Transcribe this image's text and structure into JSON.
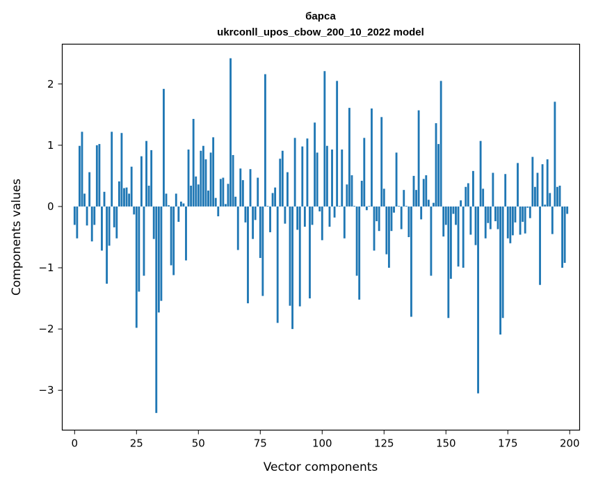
{
  "chart_data": {
    "type": "bar",
    "title": "барса",
    "subtitle": "ukrconll_upos_cbow_200_10_2022 model",
    "xlabel": "Vector components",
    "ylabel": "Components values",
    "xlim": [
      -5,
      204
    ],
    "ylim": [
      -3.65,
      2.65
    ],
    "xticks": [
      0,
      25,
      50,
      75,
      100,
      125,
      150,
      175,
      200
    ],
    "xtick_labels": [
      "0",
      "25",
      "50",
      "75",
      "100",
      "125",
      "150",
      "175",
      "200"
    ],
    "yticks": [
      -3,
      -2,
      -1,
      0,
      1,
      2
    ],
    "ytick_labels": [
      "−3",
      "−2",
      "−1",
      "0",
      "1",
      "2"
    ],
    "grid": false,
    "bar_color": "#1f77b4",
    "x": [
      0,
      1,
      2,
      3,
      4,
      5,
      6,
      7,
      8,
      9,
      10,
      11,
      12,
      13,
      14,
      15,
      16,
      17,
      18,
      19,
      20,
      21,
      22,
      23,
      24,
      25,
      26,
      27,
      28,
      29,
      30,
      31,
      32,
      33,
      34,
      35,
      36,
      37,
      38,
      39,
      40,
      41,
      42,
      43,
      44,
      45,
      46,
      47,
      48,
      49,
      50,
      51,
      52,
      53,
      54,
      55,
      56,
      57,
      58,
      59,
      60,
      61,
      62,
      63,
      64,
      65,
      66,
      67,
      68,
      69,
      70,
      71,
      72,
      73,
      74,
      75,
      76,
      77,
      78,
      79,
      80,
      81,
      82,
      83,
      84,
      85,
      86,
      87,
      88,
      89,
      90,
      91,
      92,
      93,
      94,
      95,
      96,
      97,
      98,
      99,
      100,
      101,
      102,
      103,
      104,
      105,
      106,
      107,
      108,
      109,
      110,
      111,
      112,
      113,
      114,
      115,
      116,
      117,
      118,
      119,
      120,
      121,
      122,
      123,
      124,
      125,
      126,
      127,
      128,
      129,
      130,
      131,
      132,
      133,
      134,
      135,
      136,
      137,
      138,
      139,
      140,
      141,
      142,
      143,
      144,
      145,
      146,
      147,
      148,
      149,
      150,
      151,
      152,
      153,
      154,
      155,
      156,
      157,
      158,
      159,
      160,
      161,
      162,
      163,
      164,
      165,
      166,
      167,
      168,
      169,
      170,
      171,
      172,
      173,
      174,
      175,
      176,
      177,
      178,
      179,
      180,
      181,
      182,
      183,
      184,
      185,
      186,
      187,
      188,
      189,
      190,
      191,
      192,
      193,
      194,
      195,
      196,
      197,
      198,
      199
    ],
    "values": [
      -0.3,
      -0.52,
      0.99,
      1.22,
      0.21,
      -0.31,
      0.56,
      -0.57,
      -0.3,
      1.0,
      1.02,
      -0.72,
      0.24,
      -1.26,
      -0.64,
      1.22,
      -0.34,
      -0.52,
      0.41,
      1.2,
      0.3,
      0.31,
      0.21,
      0.65,
      -0.13,
      -1.98,
      -1.39,
      0.82,
      -1.13,
      1.07,
      0.34,
      0.92,
      -0.53,
      -3.37,
      -1.73,
      -1.54,
      1.92,
      0.21,
      0.02,
      -0.96,
      -1.12,
      0.21,
      -0.25,
      0.08,
      0.05,
      -0.88,
      0.93,
      0.34,
      1.43,
      0.49,
      0.36,
      0.91,
      0.99,
      0.77,
      0.26,
      0.88,
      1.13,
      0.14,
      -0.16,
      0.45,
      0.47,
      0.04,
      0.37,
      2.42,
      0.84,
      0.16,
      -0.71,
      0.62,
      0.43,
      -0.26,
      -1.58,
      0.61,
      -0.53,
      -0.22,
      0.47,
      -0.84,
      -1.46,
      2.16,
      0.01,
      -0.42,
      0.22,
      0.31,
      -1.9,
      0.78,
      0.91,
      -0.28,
      0.56,
      -1.62,
      -2.0,
      1.12,
      -0.38,
      -1.63,
      0.98,
      -0.33,
      1.11,
      -1.5,
      -0.3,
      1.37,
      0.88,
      -0.08,
      -0.55,
      2.21,
      0.99,
      -0.33,
      0.93,
      -0.18,
      2.05,
      0.01,
      0.93,
      -0.52,
      0.36,
      1.61,
      0.51,
      0.01,
      -1.13,
      -1.52,
      0.42,
      1.12,
      -0.06,
      0.01,
      1.6,
      -0.72,
      -0.24,
      -0.4,
      1.46,
      0.29,
      -0.78,
      -1.0,
      -0.4,
      -0.1,
      0.88,
      0.01,
      -0.37,
      0.27,
      0.01,
      -0.5,
      -1.8,
      0.5,
      0.27,
      1.57,
      -0.21,
      0.45,
      0.51,
      0.11,
      -1.13,
      0.06,
      1.36,
      1.02,
      2.05,
      -0.49,
      -0.3,
      -1.82,
      -1.18,
      -0.12,
      -0.3,
      -0.98,
      0.1,
      -1.0,
      0.32,
      0.38,
      -0.46,
      0.58,
      -0.63,
      -3.05,
      1.07,
      0.29,
      -0.52,
      -0.27,
      -0.37,
      0.55,
      -0.24,
      -0.37,
      -2.09,
      -1.82,
      0.53,
      -0.52,
      -0.6,
      -0.47,
      -0.26,
      0.71,
      -0.46,
      -0.25,
      -0.44,
      -0.02,
      -0.19,
      0.81,
      0.32,
      0.55,
      -1.28,
      0.69,
      0.03,
      0.77,
      0.22,
      -0.45,
      1.71,
      0.32,
      0.34,
      -1.0,
      -0.92,
      -0.12
    ]
  }
}
